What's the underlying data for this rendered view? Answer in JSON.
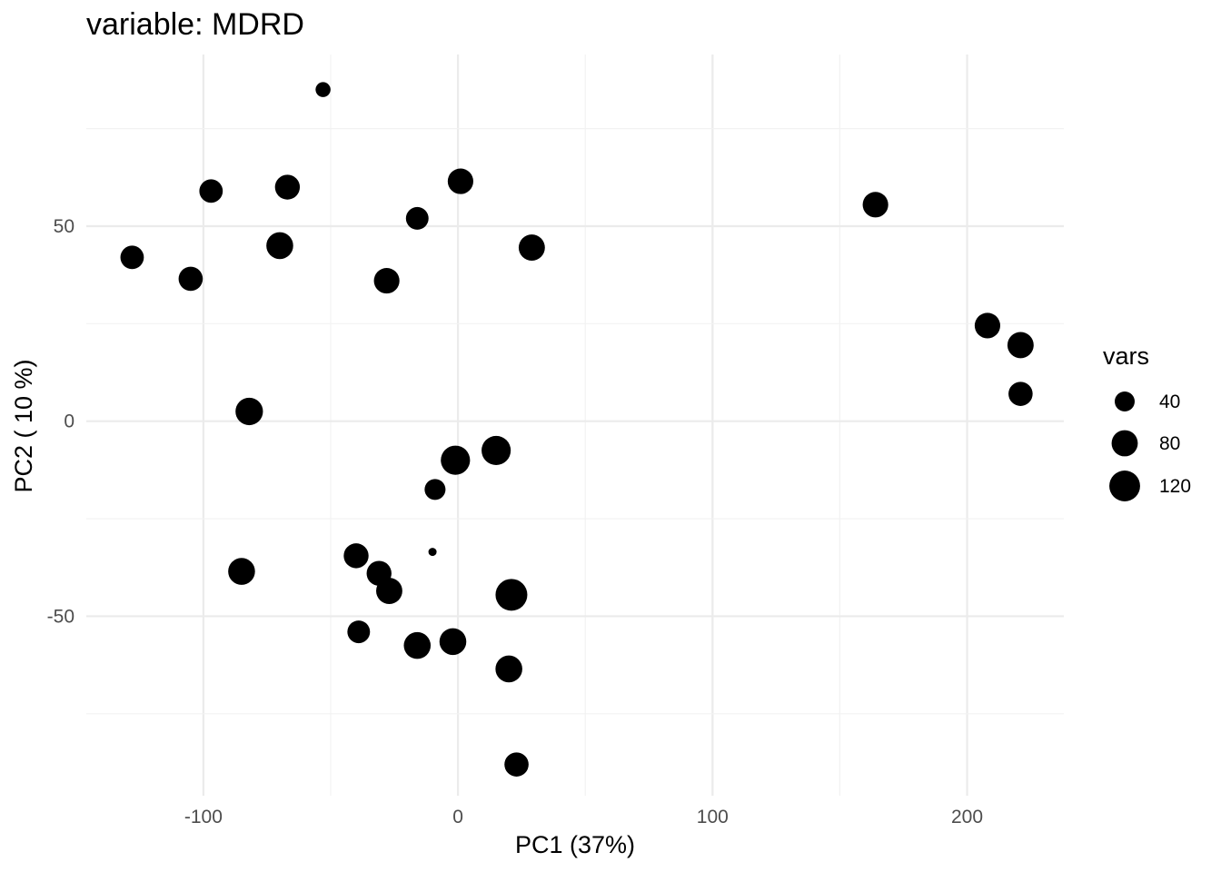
{
  "chart_data": {
    "type": "scatter",
    "title": "variable: MDRD",
    "xlabel": "PC1 (37%)",
    "ylabel": "PC2 ( 10 %)",
    "xlim": [
      -146,
      238
    ],
    "ylim": [
      -96,
      94
    ],
    "x_ticks": [
      -100,
      0,
      100,
      200
    ],
    "y_ticks": [
      -50,
      0,
      50
    ],
    "grid": true,
    "legend": {
      "title": "vars",
      "position": "right",
      "entries": [
        {
          "label": "40",
          "size": 40
        },
        {
          "label": "80",
          "size": 80
        },
        {
          "label": "120",
          "size": 120
        }
      ]
    },
    "point_color": "#000000",
    "points": [
      {
        "x": -53,
        "y": 85,
        "size": 20
      },
      {
        "x": -97,
        "y": 59,
        "size": 60
      },
      {
        "x": -67,
        "y": 60,
        "size": 70
      },
      {
        "x": 1,
        "y": 61.5,
        "size": 75
      },
      {
        "x": -16,
        "y": 52,
        "size": 55
      },
      {
        "x": 164,
        "y": 55.5,
        "size": 75
      },
      {
        "x": -128,
        "y": 42,
        "size": 60
      },
      {
        "x": -105,
        "y": 36.5,
        "size": 65
      },
      {
        "x": -70,
        "y": 45,
        "size": 85
      },
      {
        "x": -28,
        "y": 36,
        "size": 75
      },
      {
        "x": 29,
        "y": 44.5,
        "size": 80
      },
      {
        "x": 208,
        "y": 24.5,
        "size": 75
      },
      {
        "x": 221,
        "y": 19.5,
        "size": 80
      },
      {
        "x": 221,
        "y": 7,
        "size": 65
      },
      {
        "x": -82,
        "y": 2.5,
        "size": 90
      },
      {
        "x": 15,
        "y": -7.5,
        "size": 105
      },
      {
        "x": -1,
        "y": -10,
        "size": 105
      },
      {
        "x": -9,
        "y": -17.5,
        "size": 45
      },
      {
        "x": -10,
        "y": -33.5,
        "size": 10
      },
      {
        "x": -40,
        "y": -34.5,
        "size": 70
      },
      {
        "x": -31,
        "y": -39,
        "size": 70
      },
      {
        "x": -27,
        "y": -43.5,
        "size": 80
      },
      {
        "x": -85,
        "y": -38.5,
        "size": 85
      },
      {
        "x": 21,
        "y": -44.5,
        "size": 130
      },
      {
        "x": -39,
        "y": -54,
        "size": 55
      },
      {
        "x": -16,
        "y": -57.5,
        "size": 85
      },
      {
        "x": -2,
        "y": -56.5,
        "size": 85
      },
      {
        "x": 20,
        "y": -63.5,
        "size": 85
      },
      {
        "x": 23,
        "y": -88,
        "size": 65
      }
    ]
  }
}
